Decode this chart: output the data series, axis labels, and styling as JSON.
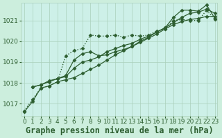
{
  "title": "Graphe pression niveau de la mer (hPa)",
  "background_color": "#cceedd",
  "plot_bg_color": "#cdf0e8",
  "grid_color": "#aacfbb",
  "line_color": "#2d5e30",
  "xlim": [
    -0.3,
    23.3
  ],
  "ylim": [
    1016.4,
    1021.85
  ],
  "yticks": [
    1017,
    1018,
    1019,
    1020,
    1021
  ],
  "xticks": [
    0,
    1,
    2,
    3,
    4,
    5,
    6,
    7,
    8,
    9,
    10,
    11,
    12,
    13,
    14,
    15,
    16,
    17,
    18,
    19,
    20,
    21,
    22,
    23
  ],
  "series": [
    {
      "x": [
        0,
        1,
        2,
        3,
        4,
        5,
        6,
        7,
        8,
        9,
        10,
        11,
        12,
        13,
        14,
        15,
        16,
        17,
        18,
        19,
        20,
        21,
        22,
        23
      ],
      "y": [
        1016.6,
        1017.1,
        1017.75,
        1017.85,
        1018.05,
        1018.15,
        1018.25,
        1018.45,
        1018.65,
        1018.85,
        1019.1,
        1019.35,
        1019.55,
        1019.75,
        1019.95,
        1020.15,
        1020.35,
        1020.6,
        1020.8,
        1020.95,
        1021.05,
        1021.1,
        1021.2,
        1021.2
      ],
      "linestyle": "solid",
      "linewidth": 0.9
    },
    {
      "x": [
        1,
        2,
        3,
        4,
        5,
        6,
        7,
        8,
        9,
        10,
        11,
        12,
        13,
        14,
        15,
        16,
        17,
        18,
        19,
        20,
        21,
        22,
        23
      ],
      "y": [
        1017.8,
        1017.9,
        1018.05,
        1018.2,
        1018.3,
        1018.7,
        1019.0,
        1019.1,
        1019.25,
        1019.5,
        1019.65,
        1019.8,
        1019.9,
        1020.1,
        1020.25,
        1020.45,
        1020.65,
        1020.9,
        1021.15,
        1021.35,
        1021.4,
        1021.55,
        1021.35
      ],
      "linestyle": "solid",
      "linewidth": 0.9
    },
    {
      "x": [
        1,
        2,
        3,
        4,
        5,
        6,
        7,
        8,
        9,
        10,
        11,
        12,
        13,
        14,
        15,
        16,
        17,
        18,
        19,
        20,
        21,
        22,
        23
      ],
      "y": [
        1017.8,
        1017.9,
        1018.1,
        1018.2,
        1018.35,
        1019.1,
        1019.4,
        1019.5,
        1019.3,
        1019.35,
        1019.5,
        1019.6,
        1019.75,
        1020.0,
        1020.2,
        1020.45,
        1020.65,
        1021.15,
        1021.5,
        1021.5,
        1021.45,
        1021.75,
        1021.1
      ],
      "linestyle": "solid",
      "linewidth": 0.9
    },
    {
      "x": [
        0,
        1,
        2,
        3,
        4,
        5,
        6,
        7,
        8,
        9,
        10,
        11,
        12,
        13,
        14,
        15,
        16,
        17,
        18,
        19,
        20,
        21,
        22,
        23
      ],
      "y": [
        1016.65,
        1017.2,
        1017.75,
        1017.85,
        1018.05,
        1019.3,
        1019.55,
        1019.65,
        1020.3,
        1020.25,
        1020.25,
        1020.3,
        1020.2,
        1020.3,
        1020.25,
        1020.3,
        1020.5,
        1020.6,
        1021.0,
        1021.05,
        1021.0,
        1021.0,
        1021.5,
        1021.05
      ],
      "linestyle": "dotted",
      "linewidth": 1.0
    }
  ],
  "marker": "D",
  "marker_size": 2.5,
  "title_fontsize": 8.5,
  "tick_fontsize": 6.5
}
